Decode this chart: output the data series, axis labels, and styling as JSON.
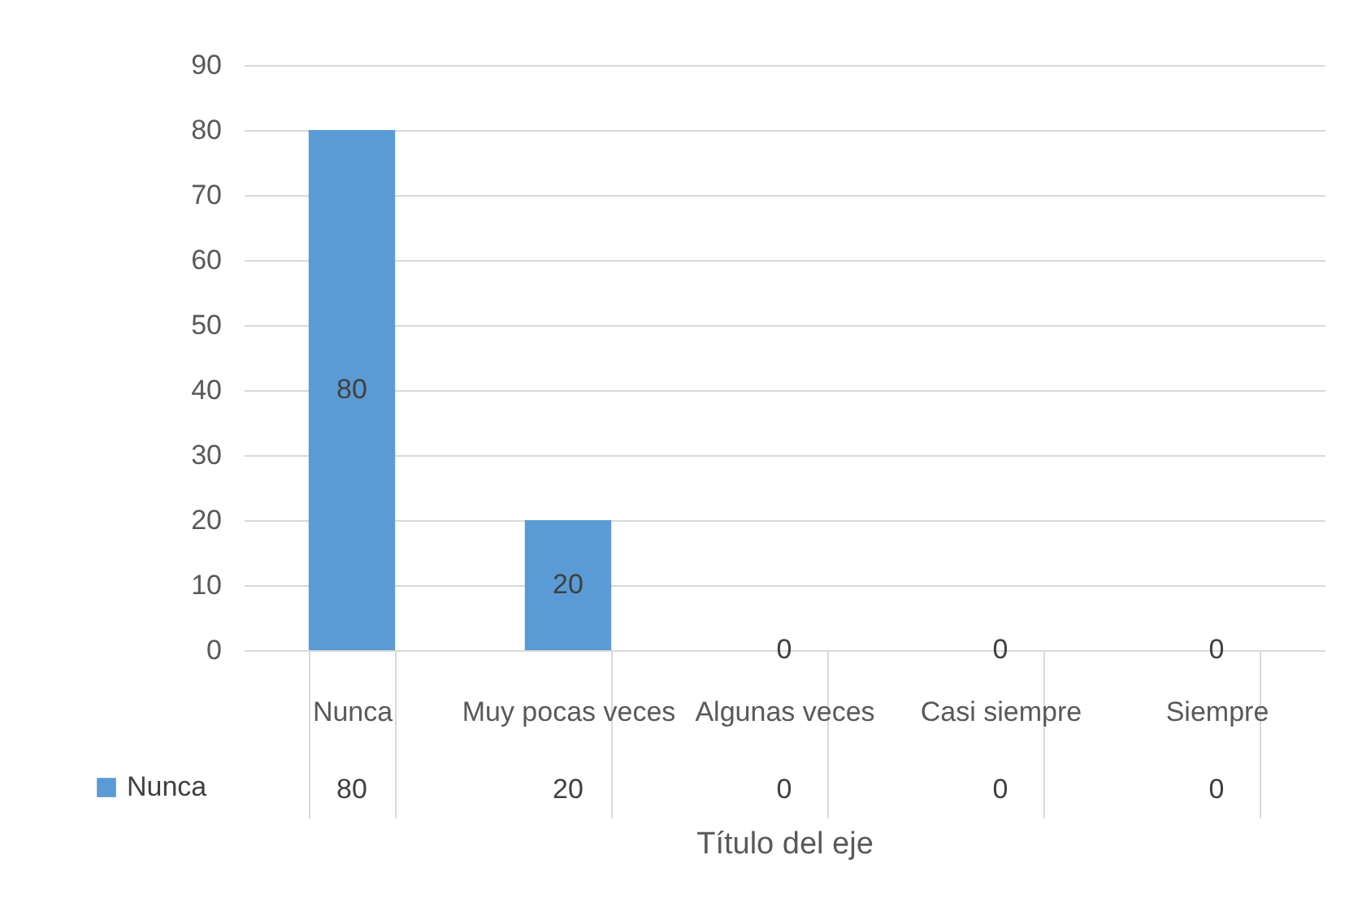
{
  "chart_data": {
    "type": "bar",
    "categories": [
      "Nunca",
      "Muy pocas veces",
      "Algunas veces",
      "Casi siempre",
      "Siempre"
    ],
    "series": [
      {
        "name": "Nunca",
        "color": "#5b9bd5",
        "values": [
          80,
          20,
          0,
          0,
          0
        ]
      }
    ],
    "data_labels": true,
    "ylim": [
      0,
      90
    ],
    "yticks": [
      0,
      10,
      20,
      30,
      40,
      50,
      60,
      70,
      80,
      90
    ],
    "grid": "y",
    "annotations": [
      "80",
      "20",
      "0",
      "0",
      "0"
    ],
    "legend": "bottom left",
    "xlabel": "Título del eje"
  }
}
